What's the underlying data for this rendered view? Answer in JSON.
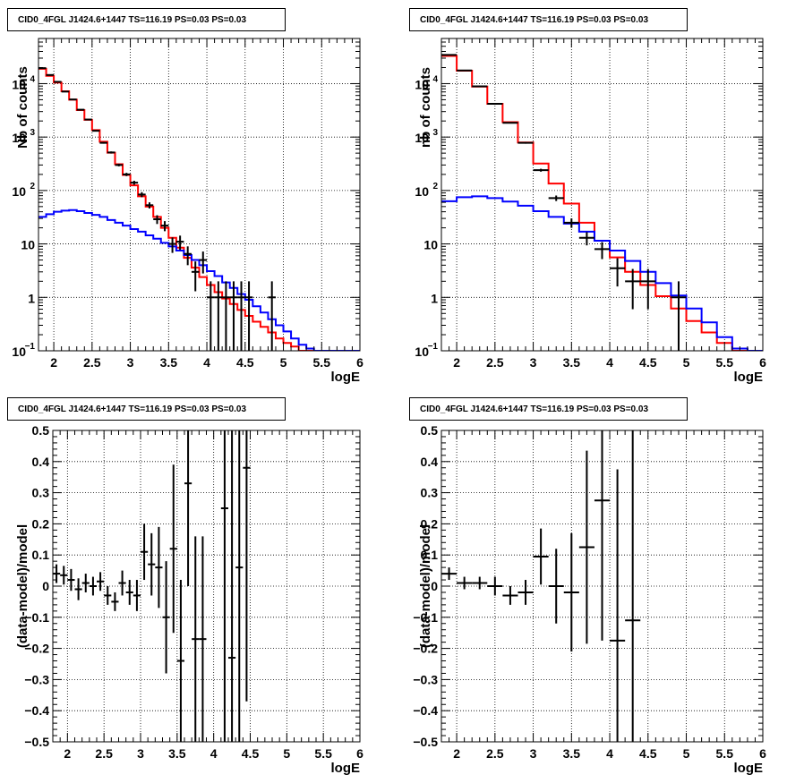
{
  "chart_data": [
    {
      "type": "line",
      "title": "CID0_4FGL J1424.6+1447 TS=116.19 PS=0.03 PS=0.03",
      "xlabel": "logE",
      "ylabel": "Nb of counts",
      "xlim": [
        1.8,
        6.0
      ],
      "ylim": [
        0.1,
        70000
      ],
      "log_y": true,
      "grid": true,
      "x_ticks": [
        "2",
        "2.5",
        "3",
        "3.5",
        "4",
        "4.5",
        "5",
        "5.5",
        "6"
      ],
      "y_ticks": [
        {
          "value": 0.1,
          "base": "10",
          "exp": "−1"
        },
        {
          "value": 1,
          "base": "1",
          "exp": ""
        },
        {
          "value": 10,
          "base": "10",
          "exp": ""
        },
        {
          "value": 100,
          "base": "10",
          "exp": "2"
        },
        {
          "value": 1000,
          "base": "10",
          "exp": "3"
        },
        {
          "value": 10000,
          "base": "10",
          "exp": "4"
        }
      ],
      "bin_edges": [
        1.8,
        1.9,
        2.0,
        2.1,
        2.2,
        2.3,
        2.4,
        2.5,
        2.6,
        2.7,
        2.8,
        2.9,
        3.0,
        3.1,
        3.2,
        3.3,
        3.4,
        3.5,
        3.6,
        3.7,
        3.8,
        3.9,
        4.0,
        4.1,
        4.2,
        4.3,
        4.4,
        4.5,
        4.6,
        4.7,
        4.8,
        4.9,
        5.0,
        5.1,
        5.2,
        5.3,
        5.4,
        5.5,
        5.6,
        5.7,
        5.8,
        5.9,
        6.0
      ],
      "series": [
        {
          "role": "model-total",
          "color": "#ff0000",
          "values": [
            19000,
            14000,
            10500,
            7200,
            5000,
            3200,
            2100,
            1350,
            820,
            510,
            310,
            195,
            125,
            78,
            50,
            32,
            20,
            13,
            8.5,
            5.5,
            3.6,
            2.4,
            1.7,
            1.25,
            0.95,
            0.75,
            0.58,
            0.45,
            0.35,
            0.28,
            0.22,
            0.17,
            0.14,
            0.12,
            0.1,
            0.1,
            0.1,
            0.1,
            0.1,
            0.1,
            0.1,
            0.1
          ]
        },
        {
          "role": "model-source",
          "color": "#0000ff",
          "values": [
            32,
            36,
            40,
            42,
            43,
            41,
            38,
            35,
            32,
            28,
            25,
            22,
            19,
            17,
            14.5,
            12.5,
            10.5,
            9,
            7.5,
            6.2,
            5.0,
            4.0,
            3.1,
            2.5,
            1.9,
            1.5,
            1.15,
            0.9,
            0.68,
            0.52,
            0.39,
            0.3,
            0.23,
            0.17,
            0.13,
            0.11,
            0.1,
            0.1,
            0.1,
            0.1,
            0.1,
            0.1
          ]
        },
        {
          "role": "data",
          "color": "#000000",
          "points": [
            {
              "x": 1.85,
              "y": 19500,
              "err": 140
            },
            {
              "x": 1.95,
              "y": 14500,
              "err": 120
            },
            {
              "x": 2.05,
              "y": 10800,
              "err": 104
            },
            {
              "x": 2.15,
              "y": 7100,
              "err": 84
            },
            {
              "x": 2.25,
              "y": 5050,
              "err": 71
            },
            {
              "x": 2.35,
              "y": 3250,
              "err": 57
            },
            {
              "x": 2.45,
              "y": 2130,
              "err": 46
            },
            {
              "x": 2.55,
              "y": 1310,
              "err": 36
            },
            {
              "x": 2.65,
              "y": 780,
              "err": 28
            },
            {
              "x": 2.75,
              "y": 515,
              "err": 23
            },
            {
              "x": 2.85,
              "y": 300,
              "err": 17
            },
            {
              "x": 2.95,
              "y": 200,
              "err": 14
            },
            {
              "x": 3.05,
              "y": 140,
              "err": 12
            },
            {
              "x": 3.15,
              "y": 84,
              "err": 9
            },
            {
              "x": 3.25,
              "y": 53,
              "err": 7
            },
            {
              "x": 3.35,
              "y": 29,
              "err": 5.4
            },
            {
              "x": 3.45,
              "y": 22,
              "err": 4.7
            },
            {
              "x": 3.55,
              "y": 10,
              "err": 3.2
            },
            {
              "x": 3.65,
              "y": 11,
              "err": 3.3
            },
            {
              "x": 3.75,
              "y": 6.5,
              "err": 2.5
            },
            {
              "x": 3.85,
              "y": 3,
              "err": 1.7
            },
            {
              "x": 3.95,
              "y": 5,
              "err": 2.2
            },
            {
              "x": 4.05,
              "y": 1,
              "err": 1
            },
            {
              "x": 4.15,
              "y": 1,
              "err": 1
            },
            {
              "x": 4.25,
              "y": 1,
              "err": 1
            },
            {
              "x": 4.35,
              "y": 1,
              "err": 1
            },
            {
              "x": 4.45,
              "y": 1,
              "err": 1
            },
            {
              "x": 4.55,
              "y": 1,
              "err": 1
            },
            {
              "x": 4.85,
              "y": 1,
              "err": 1
            }
          ]
        }
      ]
    },
    {
      "type": "line",
      "title": "CID0_4FGL J1424.6+1447 TS=116.19 PS=0.03 PS=0.03",
      "xlabel": "logE",
      "ylabel": "nb of counts",
      "xlim": [
        1.8,
        6.0
      ],
      "ylim": [
        0.1,
        70000
      ],
      "log_y": true,
      "grid": true,
      "x_ticks": [
        "2",
        "2.5",
        "3",
        "3.5",
        "4",
        "4.5",
        "5",
        "5.5",
        "6"
      ],
      "y_ticks": [
        {
          "value": 0.1,
          "base": "10",
          "exp": "−1"
        },
        {
          "value": 1,
          "base": "1",
          "exp": ""
        },
        {
          "value": 10,
          "base": "10",
          "exp": ""
        },
        {
          "value": 100,
          "base": "10",
          "exp": "2"
        },
        {
          "value": 1000,
          "base": "10",
          "exp": "3"
        },
        {
          "value": 10000,
          "base": "10",
          "exp": "4"
        }
      ],
      "bin_edges": [
        1.8,
        2.0,
        2.2,
        2.4,
        2.6,
        2.8,
        3.0,
        3.2,
        3.4,
        3.6,
        3.8,
        4.0,
        4.2,
        4.4,
        4.6,
        4.8,
        5.0,
        5.2,
        5.4,
        5.6,
        5.8,
        6.0
      ],
      "series": [
        {
          "role": "model-total",
          "color": "#ff0000",
          "values": [
            33000,
            17500,
            8800,
            4200,
            1900,
            790,
            320,
            135,
            57,
            25,
            11.5,
            5.6,
            3.0,
            1.7,
            1.05,
            0.62,
            0.36,
            0.22,
            0.14,
            0.1,
            0.1
          ]
        },
        {
          "role": "model-source",
          "color": "#0000ff",
          "values": [
            63,
            75,
            78,
            72,
            62,
            52,
            41,
            32,
            24,
            17,
            11.5,
            7.5,
            4.8,
            3.0,
            1.85,
            1.08,
            0.62,
            0.34,
            0.18,
            0.11,
            0.1
          ]
        },
        {
          "role": "data",
          "color": "#000000",
          "points": [
            {
              "x": 1.9,
              "y": 34500,
              "err": 186
            },
            {
              "x": 2.1,
              "y": 17600,
              "err": 133
            },
            {
              "x": 2.3,
              "y": 8900,
              "err": 94
            },
            {
              "x": 2.5,
              "y": 4200,
              "err": 65
            },
            {
              "x": 2.7,
              "y": 1850,
              "err": 43
            },
            {
              "x": 2.9,
              "y": 780,
              "err": 28
            },
            {
              "x": 3.1,
              "y": 240,
              "err": 15
            },
            {
              "x": 3.3,
              "y": 72,
              "err": 8.5
            },
            {
              "x": 3.5,
              "y": 25,
              "err": 5
            },
            {
              "x": 3.7,
              "y": 13,
              "err": 3.6
            },
            {
              "x": 3.9,
              "y": 8,
              "err": 2.8
            },
            {
              "x": 4.1,
              "y": 3.5,
              "err": 1.9
            },
            {
              "x": 4.3,
              "y": 2,
              "err": 1.4
            },
            {
              "x": 4.5,
              "y": 2,
              "err": 1.4
            },
            {
              "x": 4.9,
              "y": 1,
              "err": 1
            }
          ]
        }
      ]
    },
    {
      "type": "scatter",
      "title": "CID0_4FGL J1424.6+1447 TS=116.19 PS=0.03 PS=0.03",
      "xlabel": "logE",
      "ylabel": "(data-model)/model",
      "xlim": [
        1.8,
        6.0
      ],
      "ylim": [
        -0.5,
        0.5
      ],
      "grid": true,
      "x_ticks": [
        "2",
        "2.5",
        "3",
        "3.5",
        "4",
        "4.5",
        "5",
        "5.5",
        "6"
      ],
      "y_ticks": [
        "−0.5",
        "−0.4",
        "−0.3",
        "−0.2",
        "−0.1",
        "0",
        "0.1",
        "0.2",
        "0.3",
        "0.4",
        "0.5"
      ],
      "bin_width": 0.1,
      "points": [
        {
          "x": 1.85,
          "y": 0.04,
          "err": 0.03
        },
        {
          "x": 1.95,
          "y": 0.035,
          "err": 0.03
        },
        {
          "x": 2.05,
          "y": 0.02,
          "err": 0.035
        },
        {
          "x": 2.15,
          "y": -0.01,
          "err": 0.035
        },
        {
          "x": 2.25,
          "y": 0.01,
          "err": 0.03
        },
        {
          "x": 2.35,
          "y": 0.0,
          "err": 0.03
        },
        {
          "x": 2.45,
          "y": 0.015,
          "err": 0.03
        },
        {
          "x": 2.55,
          "y": -0.03,
          "err": 0.03
        },
        {
          "x": 2.65,
          "y": -0.05,
          "err": 0.03
        },
        {
          "x": 2.75,
          "y": 0.01,
          "err": 0.04
        },
        {
          "x": 2.85,
          "y": -0.02,
          "err": 0.04
        },
        {
          "x": 2.95,
          "y": -0.03,
          "err": 0.05
        },
        {
          "x": 3.05,
          "y": 0.11,
          "err": 0.09
        },
        {
          "x": 3.15,
          "y": 0.07,
          "err": 0.1
        },
        {
          "x": 3.25,
          "y": 0.06,
          "err": 0.13
        },
        {
          "x": 3.35,
          "y": -0.1,
          "err": 0.18
        },
        {
          "x": 3.45,
          "y": 0.12,
          "err": 0.27
        },
        {
          "x": 3.55,
          "y": -0.24,
          "err": 0.26
        },
        {
          "x": 3.65,
          "y": 0.33,
          "err": 0.33
        },
        {
          "x": 3.75,
          "y": -0.17,
          "err": 0.33
        },
        {
          "x": 3.85,
          "y": -0.17,
          "err": 0.33
        },
        {
          "x": 4.15,
          "y": 0.25,
          "err": 0.75
        },
        {
          "x": 4.25,
          "y": -0.23,
          "err": 0.75
        },
        {
          "x": 4.35,
          "y": 0.06,
          "err": 0.75
        },
        {
          "x": 4.45,
          "y": 0.38,
          "err": 0.75
        }
      ]
    },
    {
      "type": "scatter",
      "title": "CID0_4FGL J1424.6+1447 TS=116.19 PS=0.03 PS=0.03",
      "xlabel": "logE",
      "ylabel": "(data-model)/model",
      "xlim": [
        1.8,
        6.0
      ],
      "ylim": [
        -0.5,
        0.5
      ],
      "grid": true,
      "x_ticks": [
        "2",
        "2.5",
        "3",
        "3.5",
        "4",
        "4.5",
        "5",
        "5.5",
        "6"
      ],
      "y_ticks": [
        "−0.5",
        "−0.4",
        "−0.3",
        "−0.2",
        "−0.1",
        "0",
        "0.1",
        "0.2",
        "0.3",
        "0.4",
        "0.5"
      ],
      "bin_width": 0.2,
      "points": [
        {
          "x": 1.9,
          "y": 0.04,
          "err": 0.02
        },
        {
          "x": 2.1,
          "y": 0.01,
          "err": 0.02
        },
        {
          "x": 2.3,
          "y": 0.01,
          "err": 0.02
        },
        {
          "x": 2.5,
          "y": 0.0,
          "err": 0.03
        },
        {
          "x": 2.7,
          "y": -0.03,
          "err": 0.03
        },
        {
          "x": 2.9,
          "y": -0.02,
          "err": 0.04
        },
        {
          "x": 3.1,
          "y": 0.095,
          "err": 0.09
        },
        {
          "x": 3.3,
          "y": 0.0,
          "err": 0.12
        },
        {
          "x": 3.5,
          "y": -0.02,
          "err": 0.19
        },
        {
          "x": 3.7,
          "y": 0.125,
          "err": 0.31
        },
        {
          "x": 3.9,
          "y": 0.275,
          "err": 0.45
        },
        {
          "x": 4.1,
          "y": -0.175,
          "err": 0.55
        },
        {
          "x": 4.3,
          "y": -0.11,
          "err": 0.75
        }
      ]
    }
  ]
}
